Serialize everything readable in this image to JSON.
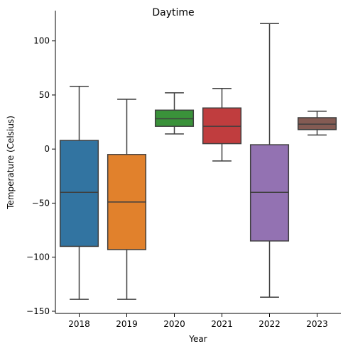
{
  "chart_data": {
    "type": "box",
    "title": "Daytime",
    "xlabel": "Year",
    "ylabel": "Temperature (Celsius)",
    "ylim": [
      -152,
      128
    ],
    "yticks": [
      -150,
      -100,
      -50,
      0,
      50,
      100
    ],
    "ytick_labels": [
      "−150",
      "−100",
      "−50",
      "0",
      "50",
      "100"
    ],
    "grid": false,
    "categories": [
      "2018",
      "2019",
      "2020",
      "2021",
      "2022",
      "2023"
    ],
    "boxes": [
      {
        "category": "2018",
        "min": -139,
        "q1": -90,
        "median": -40,
        "q3": 8,
        "max": 58,
        "color": "#3274a1"
      },
      {
        "category": "2019",
        "min": -139,
        "q1": -93,
        "median": -49,
        "q3": -5,
        "max": 46,
        "color": "#e1812c"
      },
      {
        "category": "2020",
        "min": 14,
        "q1": 21,
        "median": 28,
        "q3": 36,
        "max": 52,
        "color": "#3a923a"
      },
      {
        "category": "2021",
        "min": -11,
        "q1": 5,
        "median": 21,
        "q3": 38,
        "max": 56,
        "color": "#c03d3e"
      },
      {
        "category": "2022",
        "min": -137,
        "q1": -85,
        "median": -40,
        "q3": 4,
        "max": 116,
        "color": "#9372b2"
      },
      {
        "category": "2023",
        "min": 13,
        "q1": 18,
        "median": 23,
        "q3": 29,
        "max": 35,
        "color": "#845b53"
      }
    ]
  }
}
